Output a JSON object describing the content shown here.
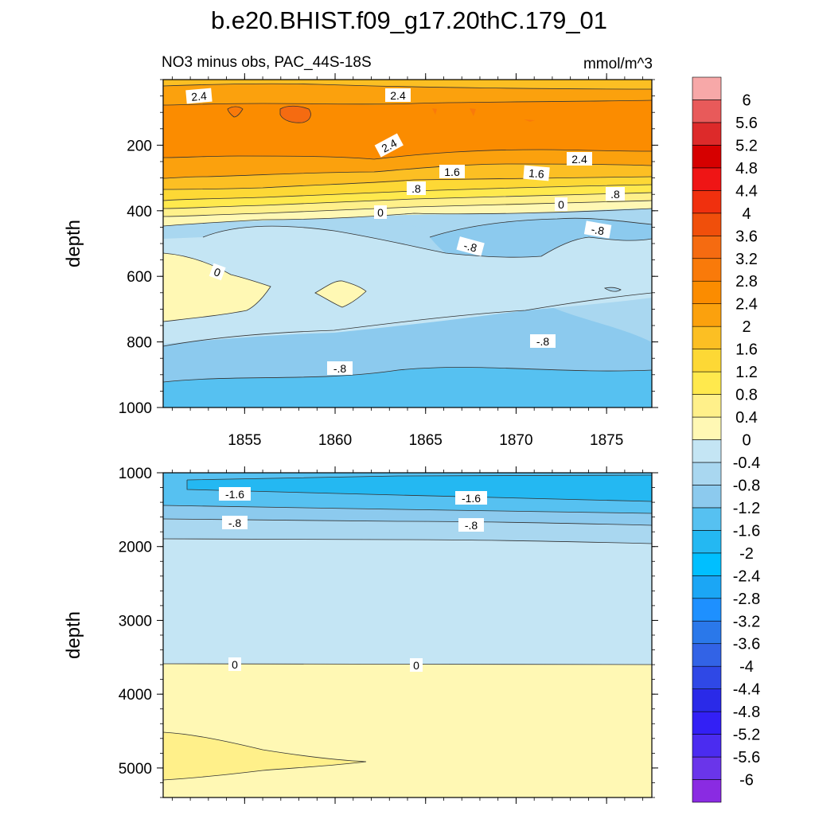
{
  "chart_data": {
    "type": "heatmap",
    "title": "b.e20.BHIST.f09_g17.20thC.179_01",
    "subtitle_left": "NO3 minus obs, PAC_44S-18S",
    "subtitle_right": "mmol/m^3",
    "colorbar": {
      "colors": [
        "#8a2be2",
        "#6a35ea",
        "#4b2cf0",
        "#3320f5",
        "#2a2ae8",
        "#2f48e6",
        "#3263e6",
        "#2a78ea",
        "#1e90ff",
        "#1ba6f5",
        "#00bfff",
        "#24b8f2",
        "#56c1f1",
        "#8ccaee",
        "#a9d7f0",
        "#c4e5f4",
        "#fff8b4",
        "#fff08a",
        "#ffe94d",
        "#fdd835",
        "#fcbf23",
        "#fba10d",
        "#fb8c00",
        "#f97a0a",
        "#f56b11",
        "#f04f0b",
        "#f0300e",
        "#ef1515",
        "#d60000",
        "#dd2a2a",
        "#e85a5a",
        "#f7a8a8"
      ],
      "labels": [
        "-6",
        "-5.6",
        "-5.2",
        "-4.8",
        "-4.4",
        "-4",
        "-3.6",
        "-3.2",
        "-2.8",
        "-2.4",
        "-2",
        "-1.6",
        "-1.2",
        "-0.8",
        "-0.4",
        "0",
        "0.4",
        "0.8",
        "1.2",
        "1.6",
        "2",
        "2.4",
        "2.8",
        "3.2",
        "3.6",
        "4",
        "4.4",
        "4.8",
        "5.2",
        "5.6",
        "6"
      ]
    },
    "panels": [
      {
        "name": "upper",
        "ylabel": "depth",
        "ylim": [
          0,
          1000
        ],
        "yticks": [
          "200",
          "400",
          "600",
          "800",
          "1000"
        ],
        "xlim": [
          1850.5,
          1877.5
        ],
        "xticks": [
          "1855",
          "1860",
          "1865",
          "1870",
          "1875"
        ],
        "contour_labels": [
          "2.4",
          "2.4",
          "2.4",
          "2.4",
          "1.6",
          "1.6",
          ".8",
          ".8",
          "0",
          "0",
          "-.8",
          "-.8",
          "0",
          "-.8",
          "-.8"
        ]
      },
      {
        "name": "lower",
        "ylabel": "depth",
        "ylim": [
          1000,
          5400
        ],
        "yticks": [
          "1000",
          "2000",
          "3000",
          "4000",
          "5000"
        ],
        "xlim": [
          1850.5,
          1877.5
        ],
        "contour_labels": [
          "-1.6",
          "-1.6",
          "-.8",
          "-.8",
          "0",
          "0"
        ]
      }
    ]
  }
}
